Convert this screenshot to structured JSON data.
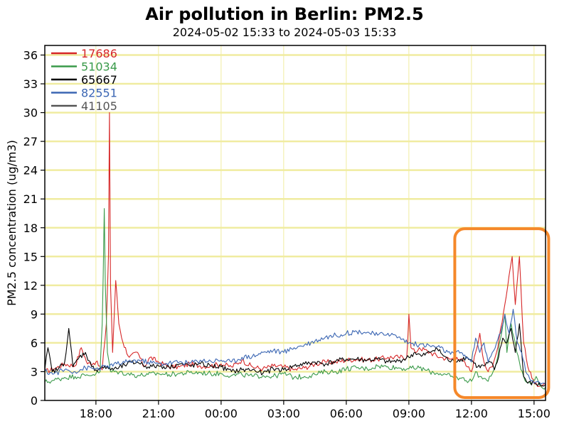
{
  "colors": {
    "grid": "#f0eca0",
    "highlight": "#f5882a",
    "axis": "#000000"
  },
  "chart_data": {
    "type": "line",
    "title": "Air pollution in Berlin: PM2.5",
    "subtitle": "2024-05-02 15:33 to 2024-05-03 15:33",
    "ylabel": "PM2.5 concentration (ug/m3)",
    "xlabel": "",
    "ylim": [
      0,
      37
    ],
    "yticks": [
      0,
      3,
      6,
      9,
      12,
      15,
      18,
      21,
      24,
      27,
      30,
      33,
      36
    ],
    "xlim_hours": [
      15.55,
      39.55
    ],
    "xticks": [
      {
        "h": 18,
        "label": "18:00"
      },
      {
        "h": 21,
        "label": "21:00"
      },
      {
        "h": 24,
        "label": "00:00"
      },
      {
        "h": 27,
        "label": "03:00"
      },
      {
        "h": 30,
        "label": "06:00"
      },
      {
        "h": 33,
        "label": "09:00"
      },
      {
        "h": 36,
        "label": "12:00"
      },
      {
        "h": 39,
        "label": "15:00"
      }
    ],
    "grid": "horizontal",
    "legend_position": "top-left",
    "highlight_box": {
      "x_from": 35.2,
      "x_to": 39.7,
      "y_from": 0.3,
      "y_to": 17.9
    },
    "series": [
      {
        "name": "17686",
        "color": "#d62728",
        "points": [
          [
            15.55,
            3.0
          ],
          [
            16.0,
            3.3
          ],
          [
            16.5,
            3.8
          ],
          [
            17.0,
            3.6
          ],
          [
            17.3,
            5.5
          ],
          [
            17.6,
            3.8
          ],
          [
            18.0,
            4.0
          ],
          [
            18.3,
            3.2
          ],
          [
            18.5,
            8.0
          ],
          [
            18.6,
            15.0
          ],
          [
            18.65,
            30.0
          ],
          [
            18.7,
            12.0
          ],
          [
            18.8,
            5.0
          ],
          [
            18.95,
            12.5
          ],
          [
            19.1,
            8.0
          ],
          [
            19.3,
            6.0
          ],
          [
            19.6,
            4.5
          ],
          [
            20.0,
            5.0
          ],
          [
            20.3,
            3.5
          ],
          [
            20.6,
            4.5
          ],
          [
            21.0,
            4.0
          ],
          [
            21.5,
            3.5
          ],
          [
            22.0,
            3.5
          ],
          [
            22.5,
            3.8
          ],
          [
            23.0,
            3.6
          ],
          [
            23.5,
            3.6
          ],
          [
            24.0,
            3.8
          ],
          [
            24.5,
            3.5
          ],
          [
            25.0,
            4.2
          ],
          [
            25.5,
            3.5
          ],
          [
            26.0,
            3.3
          ],
          [
            26.5,
            3.6
          ],
          [
            27.0,
            3.5
          ],
          [
            27.5,
            3.2
          ],
          [
            28.0,
            3.4
          ],
          [
            28.5,
            3.8
          ],
          [
            29.0,
            4.0
          ],
          [
            29.5,
            4.0
          ],
          [
            30.0,
            4.2
          ],
          [
            30.5,
            4.3
          ],
          [
            31.0,
            4.2
          ],
          [
            31.5,
            4.3
          ],
          [
            32.0,
            4.5
          ],
          [
            32.5,
            4.5
          ],
          [
            32.9,
            4.5
          ],
          [
            33.0,
            9.0
          ],
          [
            33.1,
            5.5
          ],
          [
            33.3,
            5.0
          ],
          [
            33.5,
            5.5
          ],
          [
            34.0,
            5.0
          ],
          [
            34.5,
            4.5
          ],
          [
            35.0,
            4.3
          ],
          [
            35.3,
            4.5
          ],
          [
            35.5,
            4.3
          ],
          [
            35.8,
            3.5
          ],
          [
            36.0,
            3.0
          ],
          [
            36.2,
            5.0
          ],
          [
            36.4,
            7.0
          ],
          [
            36.6,
            4.0
          ],
          [
            36.8,
            3.0
          ],
          [
            37.0,
            3.5
          ],
          [
            37.2,
            5.0
          ],
          [
            37.4,
            7.5
          ],
          [
            37.6,
            10.0
          ],
          [
            37.8,
            13.0
          ],
          [
            37.95,
            15.0
          ],
          [
            38.1,
            10.0
          ],
          [
            38.3,
            15.0
          ],
          [
            38.5,
            6.0
          ],
          [
            38.7,
            3.5
          ],
          [
            38.9,
            2.3
          ],
          [
            39.1,
            1.8
          ],
          [
            39.3,
            1.5
          ],
          [
            39.55,
            1.6
          ]
        ]
      },
      {
        "name": "51034",
        "color": "#3a9a4a",
        "points": [
          [
            15.55,
            1.9
          ],
          [
            16.0,
            2.1
          ],
          [
            16.5,
            2.4
          ],
          [
            17.0,
            2.5
          ],
          [
            17.5,
            2.6
          ],
          [
            18.0,
            2.8
          ],
          [
            18.2,
            3.0
          ],
          [
            18.3,
            8.0
          ],
          [
            18.35,
            13.0
          ],
          [
            18.4,
            20.0
          ],
          [
            18.45,
            12.0
          ],
          [
            18.55,
            5.0
          ],
          [
            18.7,
            3.0
          ],
          [
            19.0,
            3.0
          ],
          [
            19.5,
            2.8
          ],
          [
            20.0,
            2.6
          ],
          [
            20.5,
            2.7
          ],
          [
            21.0,
            2.8
          ],
          [
            21.5,
            2.7
          ],
          [
            22.0,
            2.8
          ],
          [
            22.5,
            2.9
          ],
          [
            23.0,
            2.9
          ],
          [
            23.5,
            2.8
          ],
          [
            24.0,
            2.8
          ],
          [
            24.5,
            2.6
          ],
          [
            25.0,
            2.7
          ],
          [
            25.5,
            2.5
          ],
          [
            26.0,
            2.6
          ],
          [
            26.5,
            2.5
          ],
          [
            27.0,
            2.8
          ],
          [
            27.5,
            2.4
          ],
          [
            28.0,
            2.5
          ],
          [
            28.5,
            2.7
          ],
          [
            29.0,
            3.0
          ],
          [
            29.5,
            3.0
          ],
          [
            30.0,
            3.3
          ],
          [
            30.5,
            3.4
          ],
          [
            31.0,
            3.3
          ],
          [
            31.5,
            3.6
          ],
          [
            32.0,
            3.5
          ],
          [
            32.5,
            3.4
          ],
          [
            33.0,
            3.3
          ],
          [
            33.5,
            3.4
          ],
          [
            34.0,
            3.0
          ],
          [
            34.5,
            2.8
          ],
          [
            35.0,
            2.5
          ],
          [
            35.5,
            2.3
          ],
          [
            36.0,
            2.0
          ],
          [
            36.2,
            3.0
          ],
          [
            36.4,
            2.5
          ],
          [
            36.6,
            2.3
          ],
          [
            36.8,
            2.0
          ],
          [
            37.0,
            2.8
          ],
          [
            37.2,
            4.0
          ],
          [
            37.4,
            6.5
          ],
          [
            37.6,
            9.0
          ],
          [
            37.7,
            5.0
          ],
          [
            37.9,
            8.0
          ],
          [
            38.1,
            6.0
          ],
          [
            38.3,
            4.0
          ],
          [
            38.5,
            2.5
          ],
          [
            38.7,
            1.8
          ],
          [
            38.9,
            1.8
          ],
          [
            39.1,
            2.5
          ],
          [
            39.3,
            1.5
          ],
          [
            39.55,
            1.4
          ]
        ]
      },
      {
        "name": "65667",
        "color": "#000000",
        "points": [
          [
            15.55,
            3.2
          ],
          [
            15.7,
            5.5
          ],
          [
            15.9,
            3.0
          ],
          [
            16.2,
            3.3
          ],
          [
            16.5,
            4.0
          ],
          [
            16.7,
            7.5
          ],
          [
            16.9,
            3.5
          ],
          [
            17.2,
            4.5
          ],
          [
            17.5,
            5.0
          ],
          [
            17.8,
            3.5
          ],
          [
            18.0,
            3.2
          ],
          [
            18.3,
            3.5
          ],
          [
            18.6,
            3.3
          ],
          [
            19.0,
            3.3
          ],
          [
            19.5,
            3.8
          ],
          [
            20.0,
            4.0
          ],
          [
            20.5,
            3.5
          ],
          [
            21.0,
            3.6
          ],
          [
            21.5,
            3.5
          ],
          [
            22.0,
            3.8
          ],
          [
            22.5,
            3.6
          ],
          [
            23.0,
            3.8
          ],
          [
            23.5,
            3.6
          ],
          [
            24.0,
            3.5
          ],
          [
            24.5,
            3.0
          ],
          [
            25.0,
            3.2
          ],
          [
            25.5,
            3.2
          ],
          [
            26.0,
            2.8
          ],
          [
            26.5,
            3.3
          ],
          [
            27.0,
            3.2
          ],
          [
            27.5,
            3.6
          ],
          [
            28.0,
            3.8
          ],
          [
            28.5,
            4.0
          ],
          [
            29.0,
            3.8
          ],
          [
            29.5,
            4.1
          ],
          [
            30.0,
            4.3
          ],
          [
            30.5,
            4.3
          ],
          [
            31.0,
            4.2
          ],
          [
            31.5,
            4.3
          ],
          [
            32.0,
            4.0
          ],
          [
            32.5,
            4.1
          ],
          [
            33.0,
            4.5
          ],
          [
            33.3,
            5.0
          ],
          [
            33.6,
            4.6
          ],
          [
            34.0,
            5.0
          ],
          [
            34.3,
            5.5
          ],
          [
            34.6,
            4.8
          ],
          [
            35.0,
            4.0
          ],
          [
            35.5,
            4.3
          ],
          [
            35.8,
            4.5
          ],
          [
            36.0,
            4.2
          ],
          [
            36.3,
            3.5
          ],
          [
            36.6,
            3.6
          ],
          [
            36.9,
            4.0
          ],
          [
            37.1,
            3.2
          ],
          [
            37.3,
            4.5
          ],
          [
            37.5,
            6.5
          ],
          [
            37.7,
            6.0
          ],
          [
            37.9,
            7.5
          ],
          [
            38.1,
            5.0
          ],
          [
            38.3,
            8.0
          ],
          [
            38.5,
            2.5
          ],
          [
            38.7,
            1.8
          ],
          [
            39.0,
            1.8
          ],
          [
            39.3,
            1.6
          ],
          [
            39.55,
            1.6
          ]
        ]
      },
      {
        "name": "82551",
        "color": "#3b66b3",
        "points": [
          [
            15.55,
            3.0
          ],
          [
            16.0,
            2.8
          ],
          [
            16.5,
            3.2
          ],
          [
            17.0,
            3.0
          ],
          [
            17.5,
            3.4
          ],
          [
            18.0,
            3.3
          ],
          [
            18.5,
            3.5
          ],
          [
            19.0,
            3.8
          ],
          [
            19.5,
            4.0
          ],
          [
            20.0,
            4.2
          ],
          [
            20.5,
            4.0
          ],
          [
            21.0,
            3.8
          ],
          [
            21.5,
            3.9
          ],
          [
            22.0,
            4.0
          ],
          [
            22.5,
            3.9
          ],
          [
            23.0,
            4.2
          ],
          [
            23.5,
            4.1
          ],
          [
            24.0,
            4.2
          ],
          [
            24.5,
            4.0
          ],
          [
            25.0,
            4.5
          ],
          [
            25.5,
            4.6
          ],
          [
            26.0,
            5.0
          ],
          [
            26.5,
            5.2
          ],
          [
            27.0,
            5.0
          ],
          [
            27.5,
            5.5
          ],
          [
            28.0,
            5.8
          ],
          [
            28.5,
            6.2
          ],
          [
            29.0,
            6.6
          ],
          [
            29.5,
            6.8
          ],
          [
            30.0,
            7.0
          ],
          [
            30.5,
            7.2
          ],
          [
            31.0,
            7.1
          ],
          [
            31.5,
            6.8
          ],
          [
            32.0,
            7.0
          ],
          [
            32.5,
            6.6
          ],
          [
            33.0,
            6.0
          ],
          [
            33.5,
            5.8
          ],
          [
            34.0,
            5.7
          ],
          [
            34.5,
            5.5
          ],
          [
            35.0,
            4.8
          ],
          [
            35.5,
            5.0
          ],
          [
            35.8,
            4.5
          ],
          [
            36.0,
            4.0
          ],
          [
            36.2,
            6.5
          ],
          [
            36.4,
            5.0
          ],
          [
            36.6,
            6.0
          ],
          [
            36.8,
            4.0
          ],
          [
            37.0,
            5.0
          ],
          [
            37.2,
            6.0
          ],
          [
            37.4,
            7.0
          ],
          [
            37.6,
            9.0
          ],
          [
            37.8,
            7.0
          ],
          [
            38.0,
            9.5
          ],
          [
            38.2,
            6.0
          ],
          [
            38.4,
            5.0
          ],
          [
            38.6,
            3.0
          ],
          [
            38.8,
            2.2
          ],
          [
            39.0,
            1.8
          ],
          [
            39.2,
            2.0
          ],
          [
            39.4,
            1.8
          ],
          [
            39.55,
            1.7
          ]
        ]
      },
      {
        "name": "41105",
        "color": "#555555",
        "points": []
      }
    ]
  }
}
